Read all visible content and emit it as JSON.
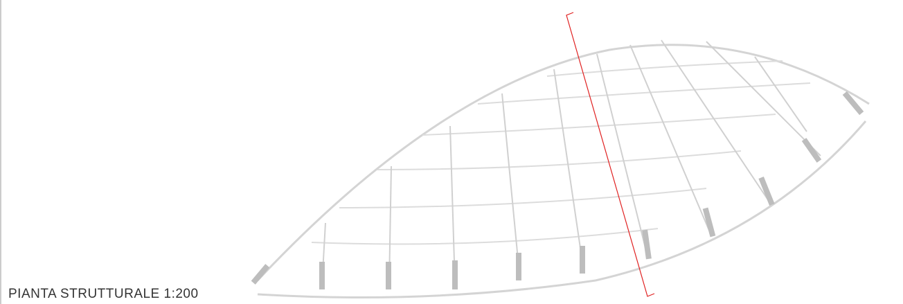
{
  "drawing": {
    "title": "PIANTA STRUTTURALE 1:200"
  }
}
